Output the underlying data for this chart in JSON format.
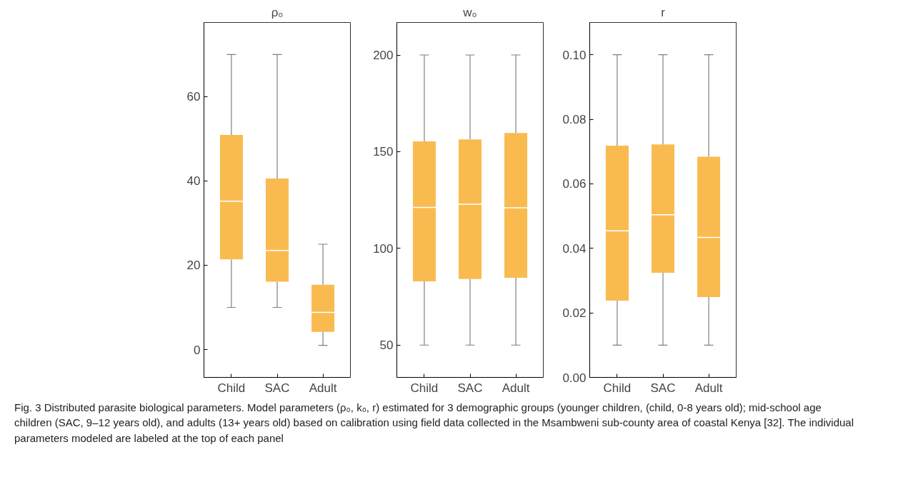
{
  "chart_data": [
    {
      "type": "box",
      "title": "ρ₀",
      "categories": [
        "Child",
        "SAC",
        "Adult"
      ],
      "color": "#f9bb50",
      "ylim": [
        -6.6,
        77.6
      ],
      "yticks": [
        0,
        20,
        40,
        60
      ],
      "grid": false,
      "boxes": [
        {
          "low": 10,
          "q1": 21.4,
          "median": 35.2,
          "q3": 50.9,
          "high": 70
        },
        {
          "low": 10,
          "q1": 16.1,
          "median": 23.5,
          "q3": 40.6,
          "high": 70
        },
        {
          "low": 1,
          "q1": 4.2,
          "median": 8.8,
          "q3": 15.4,
          "high": 25
        }
      ]
    },
    {
      "type": "box",
      "title": "w₀",
      "categories": [
        "Child",
        "SAC",
        "Adult"
      ],
      "color": "#f9bb50",
      "ylim": [
        33.3,
        216.8
      ],
      "yticks": [
        50,
        100,
        150,
        200
      ],
      "grid": false,
      "boxes": [
        {
          "low": 50,
          "q1": 83.0,
          "median": 121.2,
          "q3": 155.3,
          "high": 200
        },
        {
          "low": 50,
          "q1": 84.2,
          "median": 122.8,
          "q3": 156.3,
          "high": 200
        },
        {
          "low": 50,
          "q1": 84.8,
          "median": 121.0,
          "q3": 159.7,
          "high": 200
        }
      ]
    },
    {
      "type": "box",
      "title": "r",
      "categories": [
        "Child",
        "SAC",
        "Adult"
      ],
      "color": "#f9bb50",
      "ylim": [
        0,
        0.11
      ],
      "yticks": [
        {
          "value": 0,
          "label": "0.00"
        },
        0.02,
        0.04,
        0.06,
        0.08,
        {
          "value": 0.1,
          "label": "0.10"
        }
      ],
      "grid": false,
      "boxes": [
        {
          "low": 0.01,
          "q1": 0.0238,
          "median": 0.0454,
          "q3": 0.0718,
          "high": 0.1
        },
        {
          "low": 0.01,
          "q1": 0.0324,
          "median": 0.0504,
          "q3": 0.0722,
          "high": 0.1
        },
        {
          "low": 0.01,
          "q1": 0.0249,
          "median": 0.0434,
          "q3": 0.0684,
          "high": 0.1
        }
      ],
      "annotations": [
        "Fig. 3 Distributed parasite biological parameters. Model parameters (ρ₀, k₀, r) estimated for 3 demographic groups (younger children, (child, 0-8 years old); mid-school age children (SAC, 9–12 years old), and adults (13+ years old) based on calibration using field data collected in the Msambweni sub-county area of coastal Kenya [32]. The individual parameters modeled are labeled at the top of each panel"
      ]
    }
  ]
}
